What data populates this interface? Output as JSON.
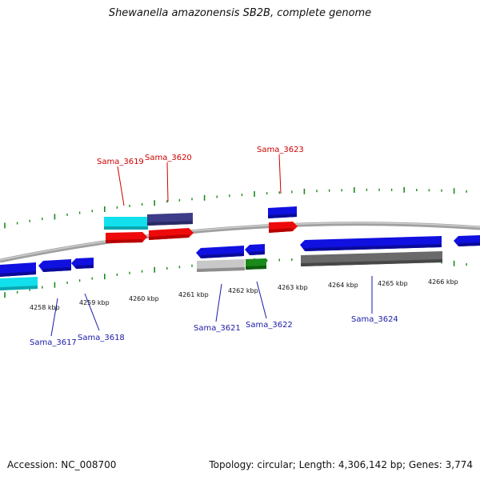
{
  "title": "Shewanella amazonensis SB2B, complete genome",
  "footer": {
    "accession": "Accession: NC_008700",
    "summary": "Topology: circular; Length: 4,306,142 bp; Genes: 3,774"
  },
  "colors": {
    "backbone": "#8a8a8a",
    "tick": "#1a8a1a",
    "forward_label": "#cc0000",
    "reverse_label": "#1a1aa8",
    "blue": "#1010e0",
    "navy": "#3c3c88",
    "cyan": "#12e0ec",
    "red": "#ee0a0a",
    "grey_light": "#c8c8c8",
    "grey_dark": "#6a6a6a",
    "green": "#1a8a1a"
  },
  "scale_labels": [
    "4258 kbp",
    "4259 kbp",
    "4260 kbp",
    "4261 kbp",
    "4262 kbp",
    "4263 kbp",
    "4264 kbp",
    "4265 kbp",
    "4266 kbp"
  ],
  "gene_labels": [
    {
      "text": "Sama_3619",
      "strand": "forward"
    },
    {
      "text": "Sama_3620",
      "strand": "forward"
    },
    {
      "text": "Sama_3623",
      "strand": "forward"
    },
    {
      "text": "Sama_3617",
      "strand": "reverse"
    },
    {
      "text": "Sama_3618",
      "strand": "reverse"
    },
    {
      "text": "Sama_3621",
      "strand": "reverse"
    },
    {
      "text": "Sama_3622",
      "strand": "reverse"
    },
    {
      "text": "Sama_3624",
      "strand": "reverse"
    }
  ]
}
